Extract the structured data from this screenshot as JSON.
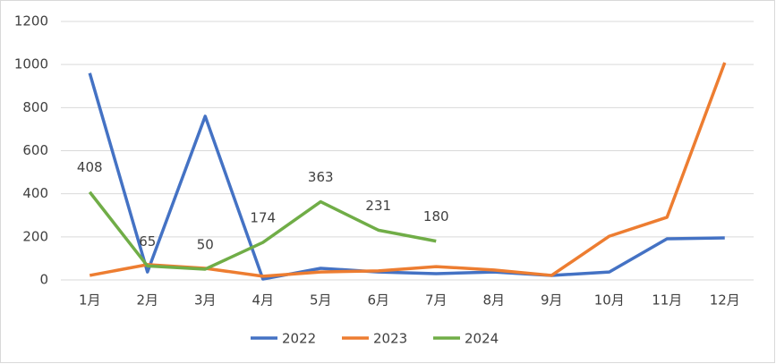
{
  "chart_data": {
    "type": "line",
    "categories": [
      "1月",
      "2月",
      "3月",
      "4月",
      "5月",
      "6月",
      "7月",
      "8月",
      "9月",
      "10月",
      "11月",
      "12月"
    ],
    "series": [
      {
        "name": "2022",
        "color": "#4472c4",
        "values": [
          960,
          37,
          760,
          4,
          54,
          37,
          29,
          37,
          21,
          37,
          191,
          195
        ]
      },
      {
        "name": "2023",
        "color": "#ed7d31",
        "values": [
          21,
          71,
          54,
          17,
          37,
          42,
          62,
          46,
          21,
          203,
          291,
          1009
        ]
      },
      {
        "name": "2024",
        "color": "#70ad47",
        "values": [
          408,
          65,
          50,
          174,
          363,
          231,
          180,
          null,
          null,
          null,
          null,
          null
        ]
      }
    ],
    "data_labels_series": 2,
    "ylim": [
      0,
      1200
    ],
    "yticks": [
      0,
      200,
      400,
      600,
      800,
      1000,
      1200
    ],
    "grid": true,
    "legend": "bottom"
  }
}
